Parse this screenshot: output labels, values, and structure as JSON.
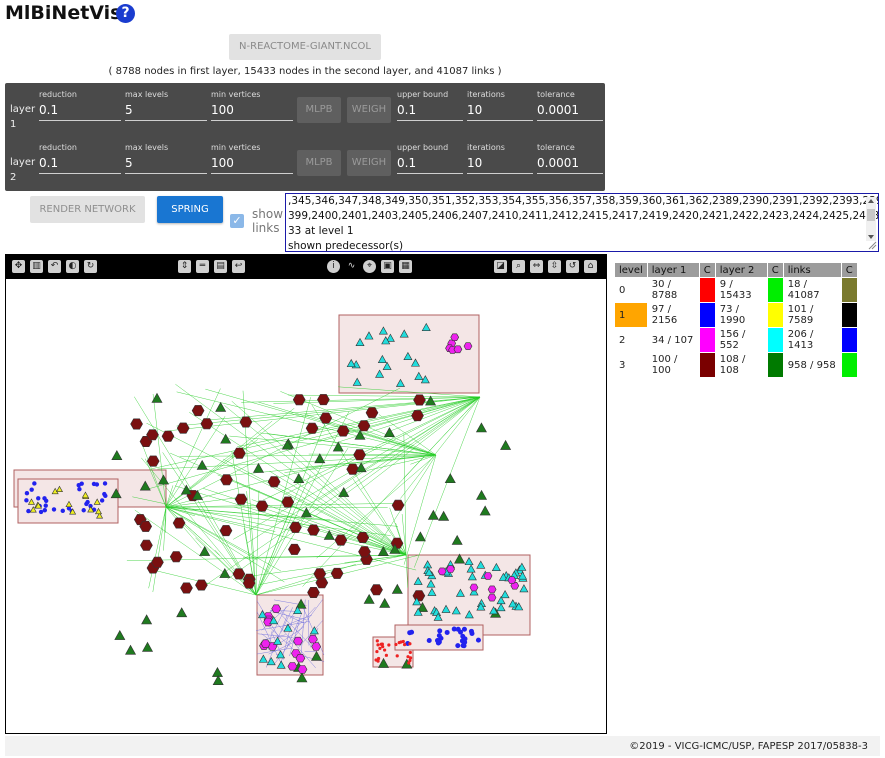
{
  "app": {
    "title": "MlBiNetVis",
    "help_icon": "?"
  },
  "file": {
    "label": "N-REACTOME-GIANT.NCOL"
  },
  "summary": "( 8788 nodes in first layer, 15433 nodes in the second layer, and 41087 links )",
  "layers": [
    {
      "label1": "layer",
      "label2": "1",
      "reduction_label": "reduction",
      "reduction": "0.1",
      "max_levels_label": "max levels",
      "max_levels": "5",
      "min_vertices_label": "min vertices",
      "min_vertices": "100",
      "mlpb": "MLPB",
      "weigh": "WEIGH",
      "upper_bound_label": "upper bound",
      "upper_bound": "0.1",
      "iterations_label": "iterations",
      "iterations": "10",
      "tolerance_label": "tolerance",
      "tolerance": "0.0001"
    },
    {
      "label1": "layer",
      "label2": "2",
      "reduction_label": "reduction",
      "reduction": "0.1",
      "max_levels_label": "max levels",
      "max_levels": "5",
      "min_vertices_label": "min vertices",
      "min_vertices": "100",
      "mlpb": "MLPB",
      "weigh": "WEIGH",
      "upper_bound_label": "upper bound",
      "upper_bound": "0.1",
      "iterations_label": "iterations",
      "iterations": "10",
      "tolerance_label": "tolerance",
      "tolerance": "0.0001"
    }
  ],
  "actions": {
    "render": "RENDER NETWORK",
    "spring": "SPRING",
    "show_links": "show links",
    "show_links_checked": true
  },
  "log": {
    "line1": ",345,346,347,348,349,350,351,352,353,354,355,356,357,358,359,360,361,362,2389,2390,2391,2392,2393,2394,2396,2397,2",
    "line2": "399,2400,2401,2403,2405,2406,2407,2410,2411,2412,2415,2417,2419,2420,2421,2422,2423,2424,2425,2428,2430,2432,24",
    "line3": "33 at level 1",
    "line4": "shown predecessor(s)"
  },
  "toolbar": {
    "left": [
      "move-icon",
      "chart-icon",
      "undo-icon",
      "toggle-icon",
      "rotate-icon"
    ],
    "middle": [
      "expand-vertical-icon",
      "compress-icon",
      "fit-icon",
      "back-icon"
    ],
    "right_center": [
      "info-icon",
      "lasso-icon",
      "compass-icon",
      "select-box-icon",
      "grid-icon"
    ],
    "right": [
      "paint-icon",
      "zoom-icon",
      "horizontal-resize-icon",
      "vertical-resize-icon",
      "reset-icon",
      "home-icon"
    ]
  },
  "legend": {
    "headers": [
      "level",
      "layer 1",
      "C",
      "layer 2",
      "C",
      "links",
      "C"
    ],
    "rows": [
      {
        "level": "0",
        "l1": "30 / 8788",
        "c1": "#ff0000",
        "l2": "9 / 15433",
        "c2": "#00ee00",
        "links": "18 / 41087",
        "c3": "#7a7a2e",
        "highlight": false
      },
      {
        "level": "1",
        "l1": "97 / 2156",
        "c1": "#0000ff",
        "l2": "73 / 1990",
        "c2": "#ffff00",
        "links": "101 / 7589",
        "c3": "#000000",
        "highlight": true
      },
      {
        "level": "2",
        "l1": "34 / 107",
        "c1": "#ff00ff",
        "l2": "156 / 552",
        "c2": "#00ffff",
        "links": "206 / 1413",
        "c3": "#0000ff",
        "highlight": false
      },
      {
        "level": "3",
        "l1": "100 / 100",
        "c1": "#7a0000",
        "l2": "108 / 108",
        "c2": "#007a00",
        "links": "958 / 958",
        "c3": "#00ee00",
        "highlight": false
      }
    ],
    "highlight_color": "#ffa500"
  },
  "footer": "©2019 - VICG-ICMC/USP, FAPESP 2017/05838-3"
}
